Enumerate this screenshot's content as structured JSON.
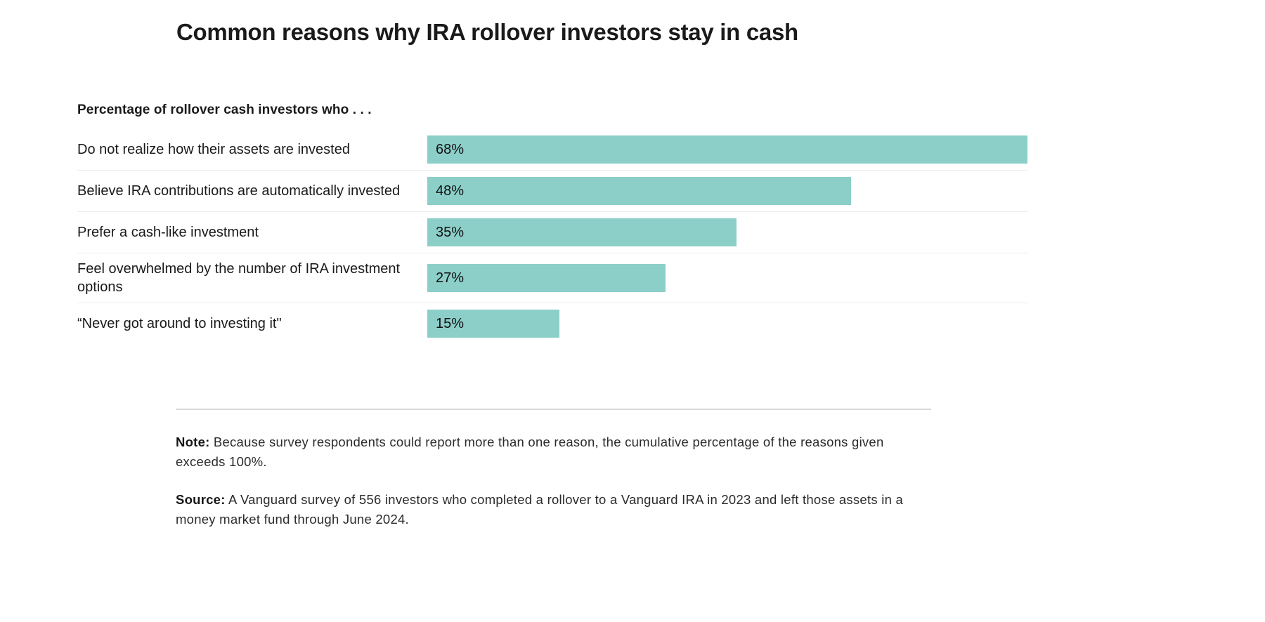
{
  "title": "Common reasons why IRA rollover investors stay in cash",
  "chart_data": {
    "type": "bar",
    "orientation": "horizontal",
    "title": "Common reasons why IRA rollover investors stay in cash",
    "axis_label": "Percentage of rollover cash investors who . . .",
    "categories": [
      "Do not realize how their assets are invested",
      "Believe IRA contributions are automatically invested",
      "Prefer a cash-like investment",
      "Feel overwhelmed by the number of IRA investment options",
      "“Never got around to investing it\""
    ],
    "values": [
      68,
      48,
      35,
      27,
      15
    ],
    "value_labels": [
      "68%",
      "48%",
      "35%",
      "27%",
      "15%"
    ],
    "bar_color": "#8ccfc9",
    "legend": "none",
    "grid": "row-separators-only"
  },
  "notes": {
    "note_label": "Note:",
    "note_text": " Because survey respondents could report more than one reason, the cumulative percentage of the reasons given exceeds 100%.",
    "source_label": "Source:",
    "source_text": " A Vanguard survey of 556 investors who completed a rollover to a Vanguard IRA in 2023 and left those assets in a money market fund through June 2024."
  }
}
